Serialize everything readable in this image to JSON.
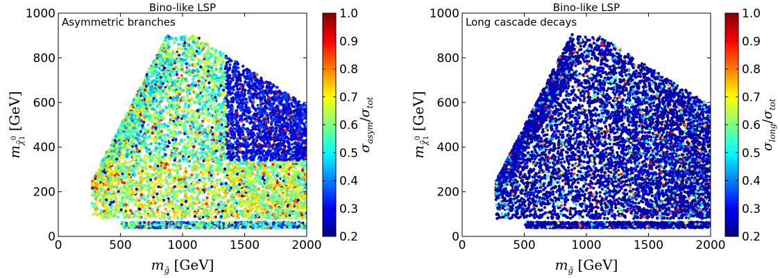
{
  "chart_data": [
    {
      "type": "scatter",
      "title": "Bino-like LSP",
      "annotation": "Asymmetric branches",
      "xlabel": "m_g̃ [GeV]",
      "ylabel": "m_χ̃⁰₁ [GeV]",
      "xlim": [
        0,
        2000
      ],
      "ylim": [
        0,
        1000
      ],
      "xticks": [
        "0",
        "500",
        "1000",
        "1500",
        "2000"
      ],
      "yticks": [
        "0",
        "200",
        "400",
        "600",
        "800",
        "1000"
      ],
      "colorbar": {
        "label": "σ_asym/σ_tot",
        "range": [
          0.2,
          1.0
        ],
        "ticks": [
          "0.2",
          "0.3",
          "0.4",
          "0.5",
          "0.6",
          "0.7",
          "0.8",
          "0.9",
          "1.0"
        ],
        "colormap": "jet"
      },
      "point_color_regions": [
        {
          "description": "diagonal band",
          "x": [
            280,
            850
          ],
          "y": [
            240,
            910
          ],
          "typical_value": 0.65
        },
        {
          "description": "low-mass bulk",
          "x": [
            400,
            2000
          ],
          "y": [
            90,
            350
          ],
          "typical_value": 0.62
        },
        {
          "description": "middle",
          "x": [
            500,
            1400
          ],
          "y": [
            350,
            800
          ],
          "typical_value": 0.55
        },
        {
          "description": "high gluino mass, high LSP mass",
          "x": [
            1400,
            2000
          ],
          "y": [
            350,
            850
          ],
          "typical_value": 0.27
        },
        {
          "description": "LSP mass ~ 50 GeV strip",
          "x": [
            510,
            2000
          ],
          "y": [
            30,
            70
          ],
          "typical_value": 0.45
        }
      ],
      "grid": false
    },
    {
      "type": "scatter",
      "title": "Bino-like LSP",
      "annotation": "Long cascade decays",
      "xlabel": "m_g̃ [GeV]",
      "ylabel": "m_χ̃⁰₁ [GeV]",
      "xlim": [
        0,
        2000
      ],
      "ylim": [
        0,
        1000
      ],
      "xticks": [
        "0",
        "500",
        "1000",
        "1500",
        "2000"
      ],
      "yticks": [
        "0",
        "200",
        "400",
        "600",
        "800",
        "1000"
      ],
      "colorbar": {
        "label": "σ_long/σ_tot",
        "range": [
          0.2,
          1.0
        ],
        "ticks": [
          "0.2",
          "0.3",
          "0.4",
          "0.5",
          "0.6",
          "0.7",
          "0.8",
          "0.9",
          "1.0"
        ],
        "colormap": "jet"
      },
      "point_color_regions": [
        {
          "description": "most points",
          "x": [
            280,
            2000
          ],
          "y": [
            30,
            900
          ],
          "typical_value": 0.22
        },
        {
          "description": "scattered higher-fraction points",
          "x": [
            600,
            1300
          ],
          "y": [
            200,
            900
          ],
          "typical_value": 0.45
        }
      ],
      "grid": false
    }
  ]
}
